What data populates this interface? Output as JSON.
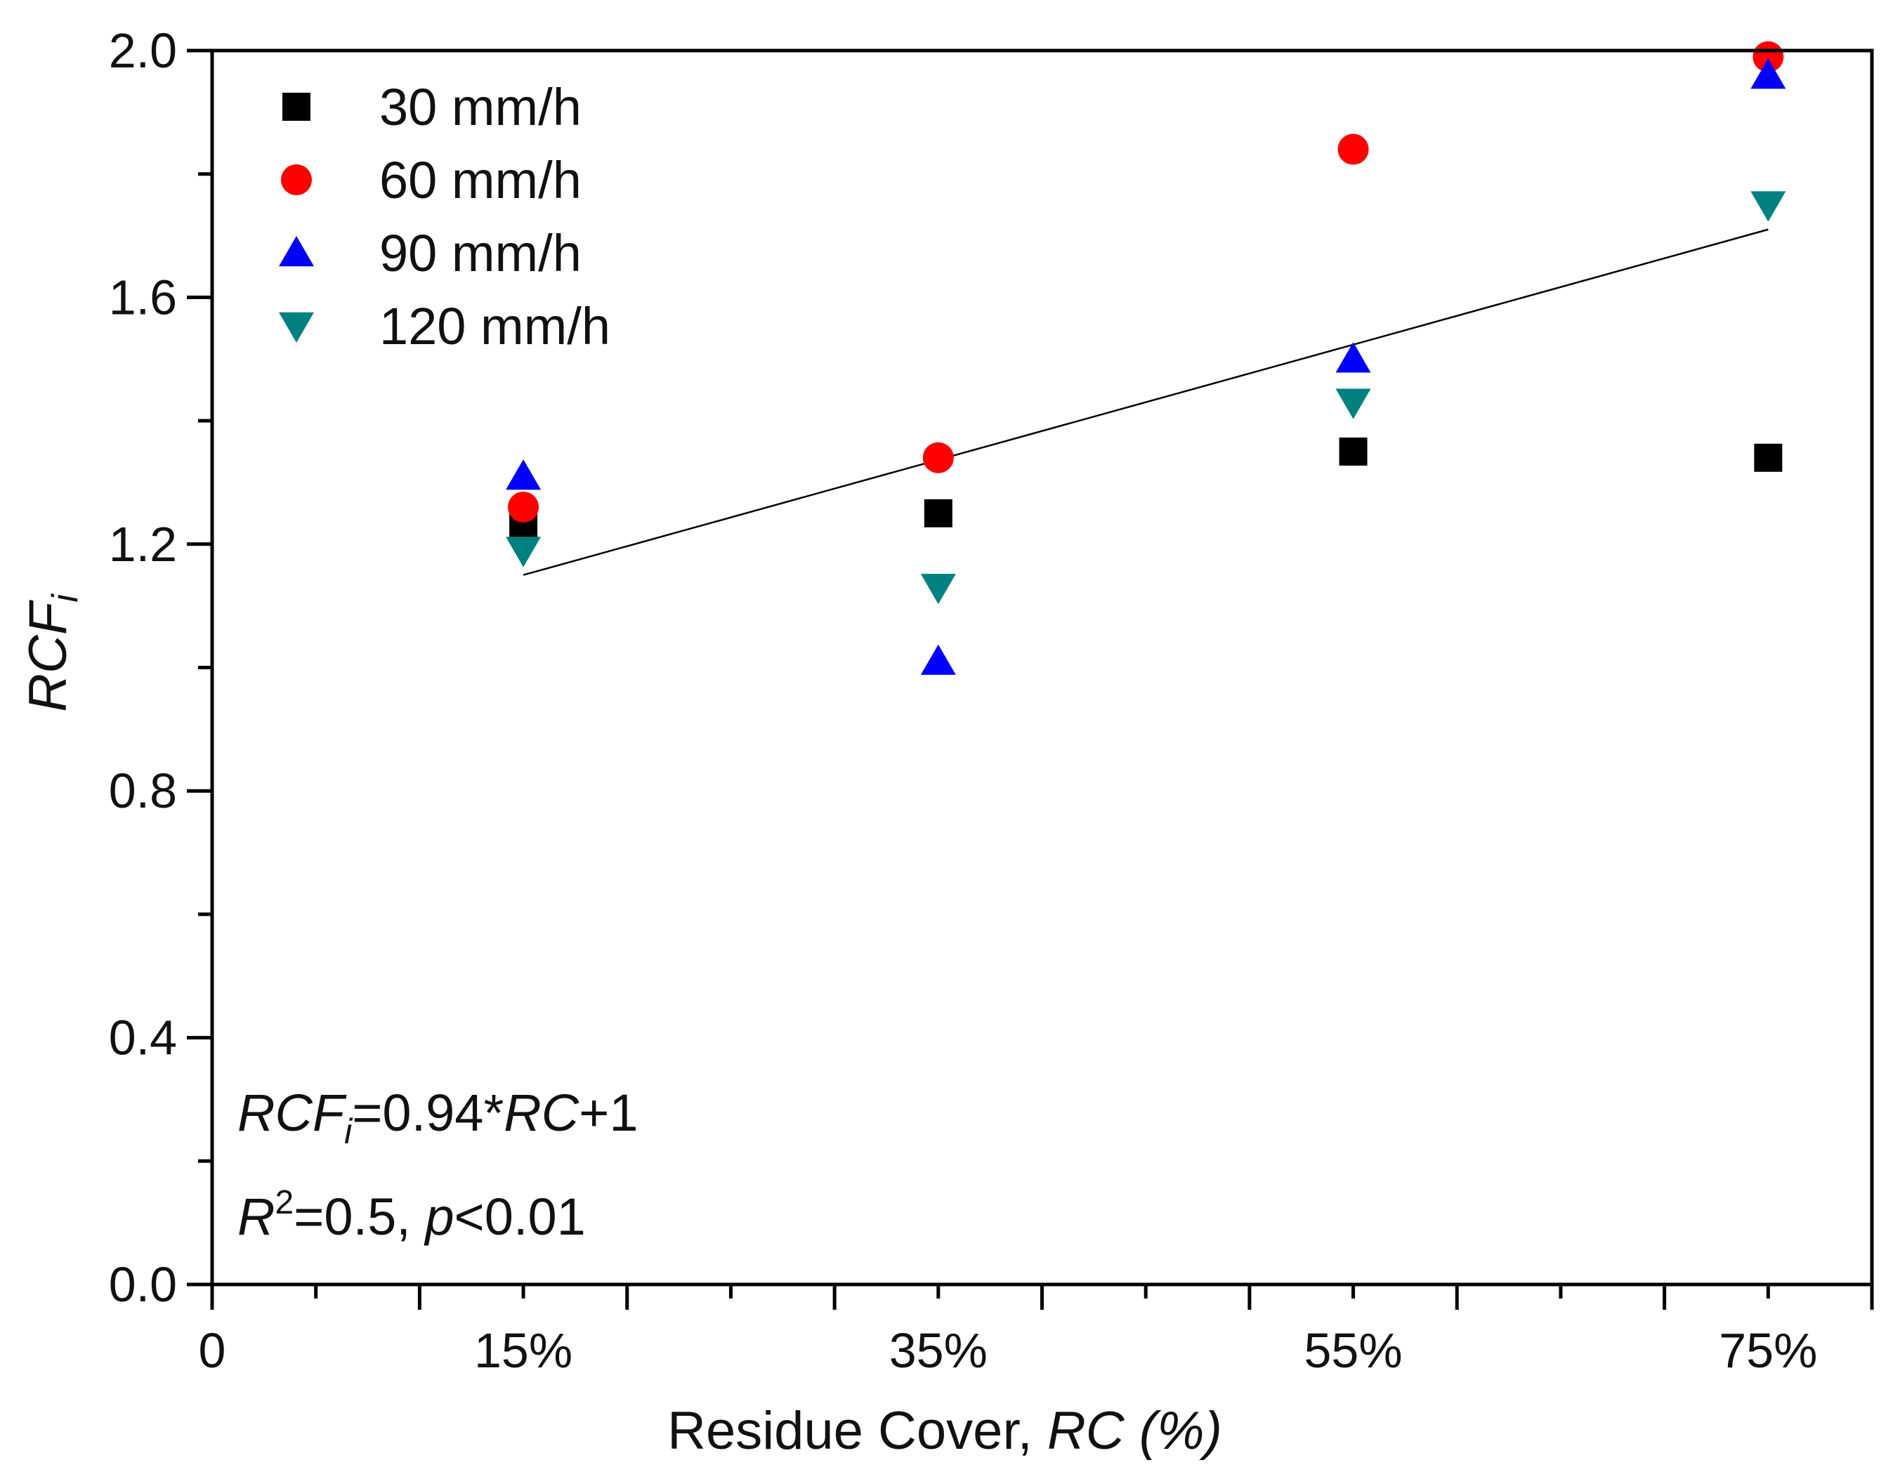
{
  "chart_data": {
    "type": "scatter",
    "title": "",
    "xlabel": "Residue Cover, ",
    "xlabel_italic": "RC",
    "xlabel_suffix": " (%)",
    "ylabel_main": "RCF",
    "ylabel_sub": "i",
    "xlim": [
      0,
      80
    ],
    "ylim": [
      0.0,
      2.0
    ],
    "x_major_ticks": [
      0,
      10,
      20,
      30,
      40,
      50,
      60,
      70,
      80
    ],
    "x_minor_ticks": [
      5,
      15,
      25,
      35,
      45,
      55,
      65,
      75
    ],
    "x_tick_labels": [
      {
        "x": 0,
        "label": "0"
      },
      {
        "x": 15,
        "label": "15%"
      },
      {
        "x": 35,
        "label": "35%"
      },
      {
        "x": 55,
        "label": "55%"
      },
      {
        "x": 75,
        "label": "75%"
      }
    ],
    "y_major_ticks": [
      0.0,
      0.4,
      0.8,
      1.2,
      1.6,
      2.0
    ],
    "y_minor_ticks": [
      0.2,
      0.6,
      1.0,
      1.4,
      1.8
    ],
    "y_tick_labels": [
      "0.0",
      "0.4",
      "0.8",
      "1.2",
      "1.6",
      "2.0"
    ],
    "series": [
      {
        "name": "30 mm/h",
        "marker": "square",
        "color": "#000000",
        "x": [
          15,
          35,
          55,
          75
        ],
        "y": [
          1.23,
          1.25,
          1.35,
          1.34
        ]
      },
      {
        "name": "60 mm/h",
        "marker": "circle",
        "color": "#ff0000",
        "x": [
          15,
          35,
          55,
          75
        ],
        "y": [
          1.26,
          1.34,
          1.84,
          1.99
        ]
      },
      {
        "name": "90 mm/h",
        "marker": "triangle-up",
        "color": "#0000ff",
        "x": [
          15,
          35,
          55,
          75
        ],
        "y": [
          1.31,
          1.01,
          1.5,
          1.96
        ]
      },
      {
        "name": "120 mm/h",
        "marker": "triangle-down",
        "color": "#008080",
        "x": [
          15,
          35,
          55,
          75
        ],
        "y": [
          1.19,
          1.13,
          1.43,
          1.75
        ]
      }
    ],
    "fit_line": {
      "x": [
        15,
        75
      ],
      "y": [
        1.15,
        1.71
      ],
      "color": "#000000"
    },
    "legend_position": "top-left",
    "annotations": {
      "equation": {
        "lhs_main": "RCF",
        "lhs_sub": "i",
        "rhs_pre": "=0.94*",
        "rhs_var": "RC",
        "rhs_post": "+1"
      },
      "stats": {
        "r": "R",
        "r_sup": "2",
        "r_val": "=0.5, ",
        "p": "p",
        "p_val": "<0.01"
      }
    },
    "grid": false
  }
}
